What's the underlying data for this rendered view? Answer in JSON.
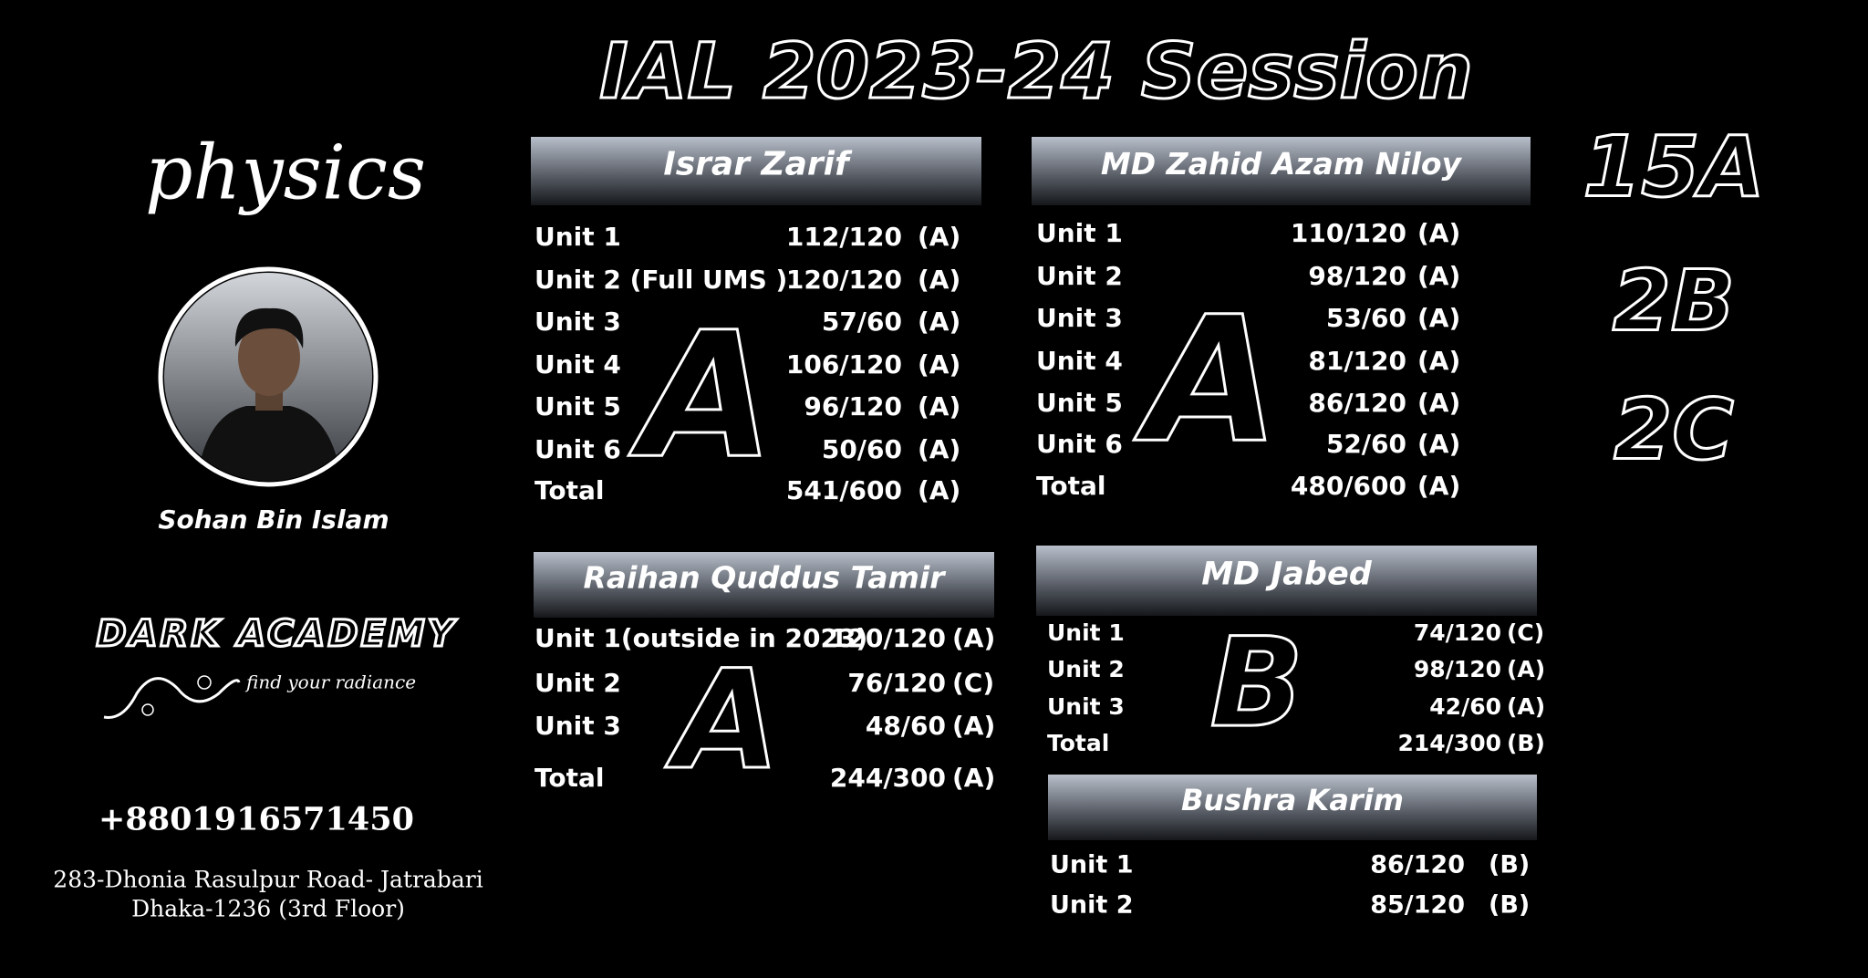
{
  "title": "IAL 2023-24  Session",
  "subject": "physics",
  "teacher": "Sohan Bin Islam",
  "brand": {
    "name": "DARK ACADEMY",
    "tagline": "find your radiance"
  },
  "contact": {
    "phone": "+8801916571450",
    "address": [
      "283-Dhonia Rasulpur Road- Jatrabari",
      "Dhaka-1236 (3rd Floor)"
    ]
  },
  "grade_counts": [
    "15A",
    "2B",
    "2C"
  ],
  "students": [
    {
      "name": "Israr Zarif",
      "grade": "A",
      "rows": [
        [
          "Unit 1",
          "112/120",
          "(A)"
        ],
        [
          "Unit 2 (Full UMS )",
          "120/120",
          "(A)"
        ],
        [
          "Unit 3",
          "57/60",
          "(A)"
        ],
        [
          "Unit 4",
          "106/120",
          "(A)"
        ],
        [
          "Unit 5",
          "96/120",
          "(A)"
        ],
        [
          "Unit 6",
          "50/60",
          "(A)"
        ],
        [
          "Total",
          "541/600",
          "(A)"
        ]
      ]
    },
    {
      "name": "MD Zahid Azam Niloy",
      "grade": "A",
      "rows": [
        [
          "Unit 1",
          "110/120",
          "(A)"
        ],
        [
          "Unit 2",
          "98/120",
          "(A)"
        ],
        [
          "Unit 3",
          "53/60",
          "(A)"
        ],
        [
          "Unit 4",
          "81/120",
          "(A)"
        ],
        [
          "Unit 5",
          "86/120",
          "(A)"
        ],
        [
          "Unit 6",
          "52/60",
          "(A)"
        ],
        [
          "Total",
          "480/600",
          "(A)"
        ]
      ]
    },
    {
      "name": "Raihan Quddus Tamir",
      "grade": "A",
      "rows": [
        [
          "Unit 1(outside in 2023)",
          "120/120",
          "(A)"
        ],
        [
          "Unit 2",
          "76/120",
          "(C)"
        ],
        [
          "Unit 3",
          "48/60",
          "(A)"
        ],
        [
          "Total",
          "244/300",
          "(A)"
        ]
      ]
    },
    {
      "name": "MD Jabed",
      "grade": "B",
      "rows": [
        [
          "Unit 1",
          "74/120",
          "(C)"
        ],
        [
          "Unit 2",
          "98/120",
          "(A)"
        ],
        [
          "Unit 3",
          "42/60",
          "(A)"
        ],
        [
          "Total",
          "214/300",
          "(B)"
        ]
      ]
    },
    {
      "name": "Bushra Karim",
      "rows": [
        [
          "Unit 1",
          "86/120",
          "(B)"
        ],
        [
          "Unit 2",
          "85/120",
          "(B)"
        ]
      ]
    }
  ]
}
